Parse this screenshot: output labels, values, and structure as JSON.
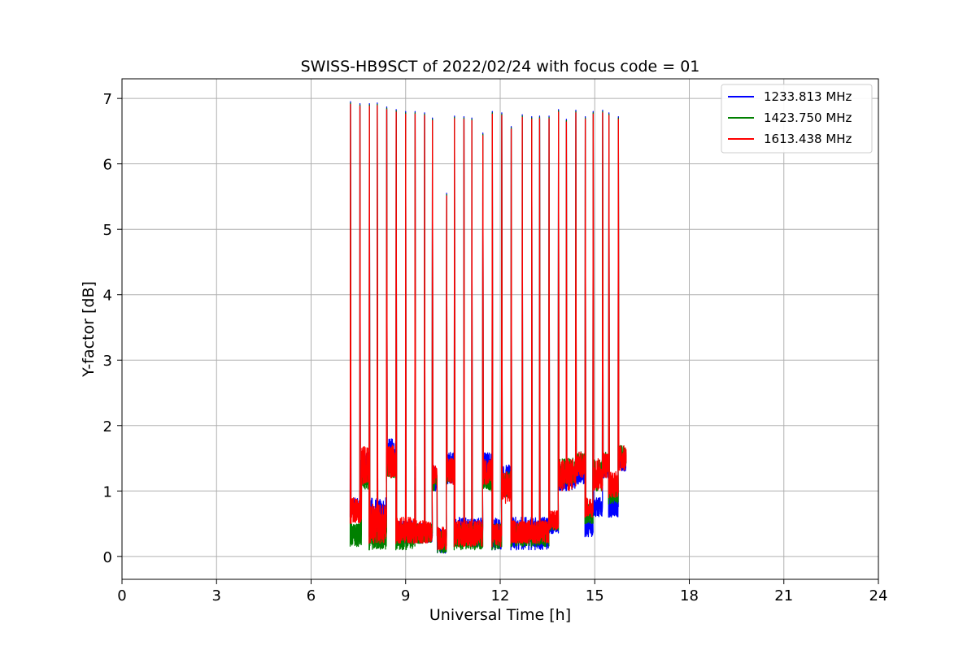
{
  "chart_data": {
    "type": "line",
    "title": "SWISS-HB9SCT of 2022/02/24 with focus code = 01",
    "xlabel": "Universal Time [h]",
    "ylabel": "Y-factor [dB]",
    "xlim": [
      0,
      24
    ],
    "ylim": [
      -0.35,
      7.3
    ],
    "xticks": [
      0,
      3,
      6,
      9,
      12,
      15,
      18,
      21,
      24
    ],
    "yticks": [
      0,
      1,
      2,
      3,
      4,
      5,
      6,
      7
    ],
    "grid": true,
    "legend_position": "top-right",
    "burst_times": [
      7.25,
      7.55,
      7.85,
      8.1,
      8.4,
      8.7,
      9.0,
      9.3,
      9.6,
      9.85,
      10.3,
      10.55,
      10.85,
      11.1,
      11.45,
      11.75,
      12.05,
      12.35,
      12.7,
      13.0,
      13.25,
      13.55,
      13.85,
      14.1,
      14.4,
      14.7,
      14.95,
      15.25,
      15.45,
      15.75
    ],
    "burst_peaks": [
      6.95,
      6.92,
      6.92,
      6.93,
      6.87,
      6.83,
      6.8,
      6.8,
      6.78,
      6.7,
      5.55,
      6.73,
      6.72,
      6.7,
      6.47,
      6.8,
      6.78,
      6.57,
      6.75,
      6.72,
      6.73,
      6.73,
      6.83,
      6.68,
      6.82,
      6.72,
      6.8,
      6.82,
      6.78,
      6.72
    ],
    "data_range": [
      7.25,
      16.0
    ],
    "series": [
      {
        "name": "1233.813 MHz",
        "color": "#0000ff",
        "segments": [
          {
            "x": [
              7.25,
              7.6
            ],
            "y": [
              0.6,
              0.9
            ]
          },
          {
            "x": [
              7.6,
              7.85
            ],
            "y": [
              1.2,
              1.6
            ]
          },
          {
            "x": [
              7.85,
              8.4
            ],
            "y": [
              0.3,
              0.9
            ]
          },
          {
            "x": [
              8.4,
              8.7
            ],
            "y": [
              1.3,
              1.8
            ]
          },
          {
            "x": [
              8.7,
              9.3
            ],
            "y": [
              0.2,
              0.55
            ]
          },
          {
            "x": [
              9.3,
              9.85
            ],
            "y": [
              0.2,
              0.5
            ]
          },
          {
            "x": [
              9.85,
              10.0
            ],
            "y": [
              1.0,
              1.4
            ]
          },
          {
            "x": [
              10.0,
              10.3
            ],
            "y": [
              0.05,
              0.45
            ]
          },
          {
            "x": [
              10.3,
              10.55
            ],
            "y": [
              1.1,
              1.6
            ]
          },
          {
            "x": [
              10.55,
              11.45
            ],
            "y": [
              0.15,
              0.6
            ]
          },
          {
            "x": [
              11.45,
              11.75
            ],
            "y": [
              1.1,
              1.6
            ]
          },
          {
            "x": [
              11.75,
              12.05
            ],
            "y": [
              0.1,
              0.6
            ]
          },
          {
            "x": [
              12.05,
              12.35
            ],
            "y": [
              0.9,
              1.4
            ]
          },
          {
            "x": [
              12.35,
              13.55
            ],
            "y": [
              0.1,
              0.6
            ]
          },
          {
            "x": [
              13.55,
              13.85
            ],
            "y": [
              0.35,
              0.6
            ]
          },
          {
            "x": [
              13.85,
              14.4
            ],
            "y": [
              1.0,
              1.4
            ]
          },
          {
            "x": [
              14.4,
              14.7
            ],
            "y": [
              1.1,
              1.5
            ]
          },
          {
            "x": [
              14.7,
              14.95
            ],
            "y": [
              0.3,
              0.6
            ]
          },
          {
            "x": [
              14.95,
              15.25
            ],
            "y": [
              0.6,
              0.9
            ]
          },
          {
            "x": [
              15.25,
              15.45
            ],
            "y": [
              1.2,
              1.5
            ]
          },
          {
            "x": [
              15.45,
              15.75
            ],
            "y": [
              0.6,
              0.9
            ]
          },
          {
            "x": [
              15.75,
              16.0
            ],
            "y": [
              1.3,
              1.6
            ]
          }
        ]
      },
      {
        "name": "1423.750 MHz",
        "color": "#008000",
        "segments": [
          {
            "x": [
              7.25,
              7.6
            ],
            "y": [
              0.15,
              0.5
            ]
          },
          {
            "x": [
              7.6,
              7.85
            ],
            "y": [
              1.0,
              1.4
            ]
          },
          {
            "x": [
              7.85,
              8.4
            ],
            "y": [
              0.1,
              0.4
            ]
          },
          {
            "x": [
              8.4,
              8.7
            ],
            "y": [
              1.2,
              1.5
            ]
          },
          {
            "x": [
              8.7,
              9.3
            ],
            "y": [
              0.1,
              0.5
            ]
          },
          {
            "x": [
              9.3,
              9.85
            ],
            "y": [
              0.2,
              0.5
            ]
          },
          {
            "x": [
              9.85,
              10.0
            ],
            "y": [
              1.0,
              1.3
            ]
          },
          {
            "x": [
              10.0,
              10.3
            ],
            "y": [
              0.05,
              0.4
            ]
          },
          {
            "x": [
              10.3,
              10.55
            ],
            "y": [
              1.1,
              1.4
            ]
          },
          {
            "x": [
              10.55,
              11.45
            ],
            "y": [
              0.1,
              0.5
            ]
          },
          {
            "x": [
              11.45,
              11.75
            ],
            "y": [
              1.0,
              1.3
            ]
          },
          {
            "x": [
              11.75,
              12.05
            ],
            "y": [
              0.1,
              0.5
            ]
          },
          {
            "x": [
              12.05,
              12.35
            ],
            "y": [
              0.9,
              1.3
            ]
          },
          {
            "x": [
              12.35,
              13.55
            ],
            "y": [
              0.15,
              0.5
            ]
          },
          {
            "x": [
              13.55,
              13.85
            ],
            "y": [
              0.4,
              0.6
            ]
          },
          {
            "x": [
              13.85,
              14.4
            ],
            "y": [
              1.1,
              1.5
            ]
          },
          {
            "x": [
              14.4,
              14.7
            ],
            "y": [
              1.3,
              1.6
            ]
          },
          {
            "x": [
              14.7,
              14.95
            ],
            "y": [
              0.5,
              0.8
            ]
          },
          {
            "x": [
              14.95,
              15.25
            ],
            "y": [
              1.0,
              1.5
            ]
          },
          {
            "x": [
              15.25,
              15.45
            ],
            "y": [
              1.3,
              1.6
            ]
          },
          {
            "x": [
              15.45,
              15.75
            ],
            "y": [
              0.8,
              1.2
            ]
          },
          {
            "x": [
              15.75,
              16.0
            ],
            "y": [
              1.4,
              1.7
            ]
          }
        ]
      },
      {
        "name": "1613.438 MHz",
        "color": "#ff0000",
        "segments": [
          {
            "x": [
              7.25,
              7.6
            ],
            "y": [
              0.5,
              0.9
            ]
          },
          {
            "x": [
              7.6,
              7.85
            ],
            "y": [
              1.1,
              1.7
            ]
          },
          {
            "x": [
              7.85,
              8.4
            ],
            "y": [
              0.2,
              0.8
            ]
          },
          {
            "x": [
              8.4,
              8.7
            ],
            "y": [
              1.2,
              1.7
            ]
          },
          {
            "x": [
              8.7,
              9.3
            ],
            "y": [
              0.2,
              0.6
            ]
          },
          {
            "x": [
              9.3,
              9.85
            ],
            "y": [
              0.2,
              0.55
            ]
          },
          {
            "x": [
              9.85,
              10.0
            ],
            "y": [
              1.1,
              1.4
            ]
          },
          {
            "x": [
              10.0,
              10.3
            ],
            "y": [
              0.1,
              0.45
            ]
          },
          {
            "x": [
              10.3,
              10.55
            ],
            "y": [
              1.1,
              1.5
            ]
          },
          {
            "x": [
              10.55,
              11.45
            ],
            "y": [
              0.15,
              0.55
            ]
          },
          {
            "x": [
              11.45,
              11.75
            ],
            "y": [
              1.1,
              1.5
            ]
          },
          {
            "x": [
              11.75,
              12.05
            ],
            "y": [
              0.15,
              0.5
            ]
          },
          {
            "x": [
              12.05,
              12.35
            ],
            "y": [
              0.8,
              1.3
            ]
          },
          {
            "x": [
              12.35,
              13.55
            ],
            "y": [
              0.2,
              0.55
            ]
          },
          {
            "x": [
              13.55,
              13.85
            ],
            "y": [
              0.4,
              0.7
            ]
          },
          {
            "x": [
              13.85,
              14.4
            ],
            "y": [
              1.0,
              1.5
            ]
          },
          {
            "x": [
              14.4,
              14.7
            ],
            "y": [
              1.2,
              1.6
            ]
          },
          {
            "x": [
              14.7,
              14.95
            ],
            "y": [
              0.6,
              0.9
            ]
          },
          {
            "x": [
              14.95,
              15.25
            ],
            "y": [
              1.0,
              1.5
            ]
          },
          {
            "x": [
              15.25,
              15.45
            ],
            "y": [
              1.2,
              1.6
            ]
          },
          {
            "x": [
              15.45,
              15.75
            ],
            "y": [
              0.9,
              1.3
            ]
          },
          {
            "x": [
              15.75,
              16.0
            ],
            "y": [
              1.3,
              1.7
            ]
          }
        ]
      }
    ]
  }
}
